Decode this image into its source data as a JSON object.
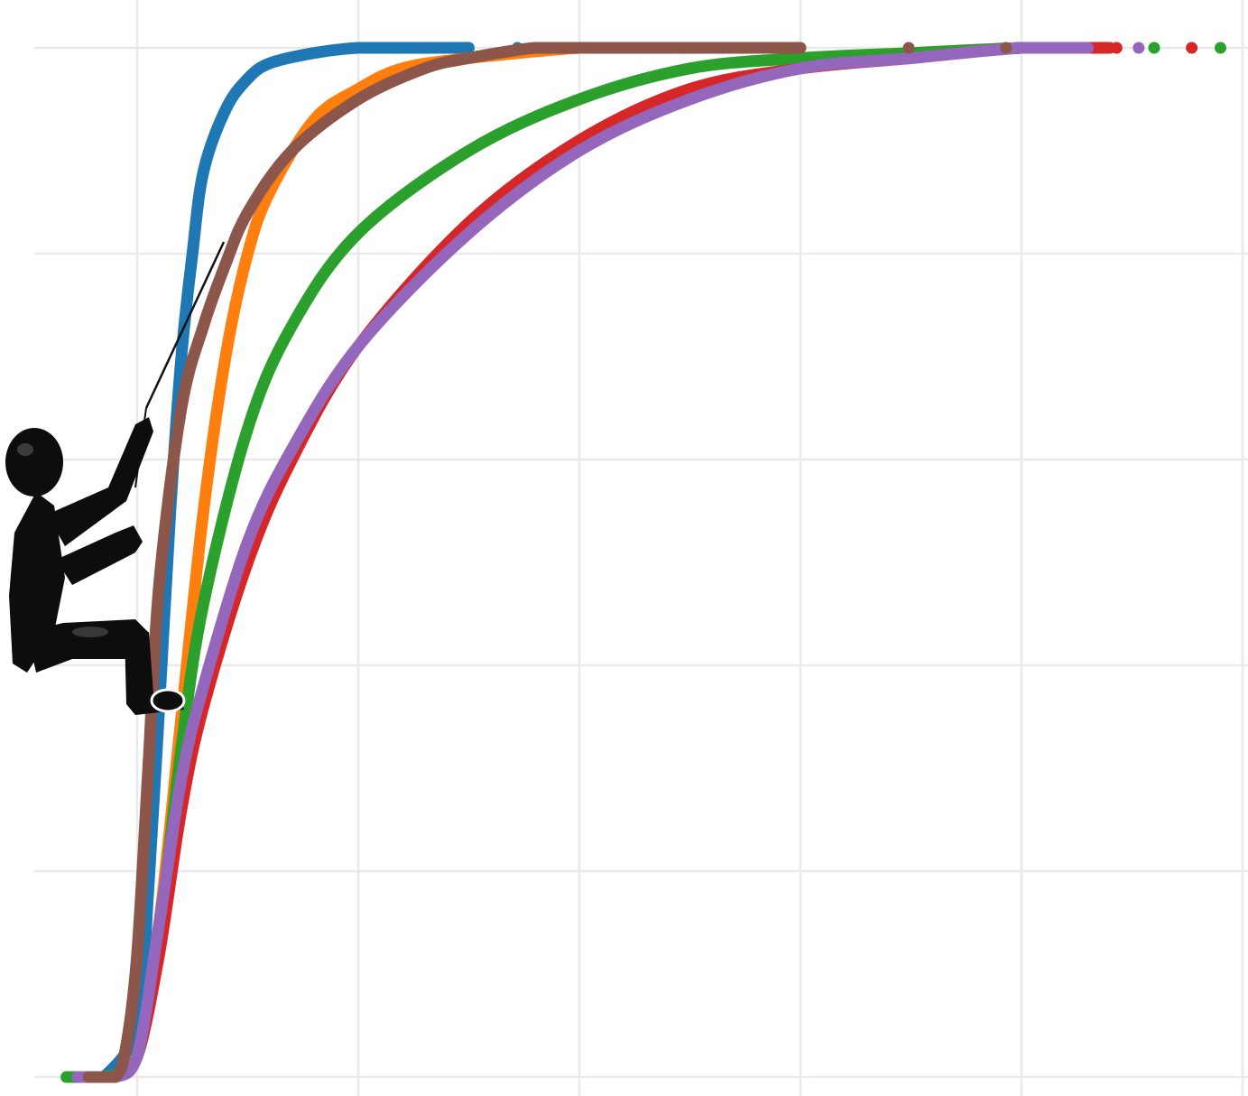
{
  "chart_data": {
    "type": "scatter",
    "title": "",
    "xlabel": "",
    "ylabel": "",
    "xlim": [
      -0.47,
      5.02
    ],
    "ylim": [
      -0.04,
      1.03
    ],
    "x_gridlines": [
      0,
      1,
      2,
      3,
      4,
      5
    ],
    "y_gridlines": [
      0,
      0.2,
      0.4,
      0.6,
      0.8,
      1.0
    ],
    "grid": true,
    "legend": "none",
    "series": [
      {
        "color": "#1f77b4",
        "x": [
          -0.22,
          -0.15,
          0.0,
          0.05,
          0.1,
          0.15,
          0.2,
          0.25,
          0.3,
          0.4,
          0.5,
          0.6,
          0.8,
          1.0,
          1.2,
          1.5
        ],
        "y": [
          0.0,
          0.0,
          0.05,
          0.18,
          0.36,
          0.55,
          0.7,
          0.8,
          0.88,
          0.94,
          0.97,
          0.985,
          0.995,
          1.0,
          1.0,
          1.0
        ],
        "tail_x": [
          1.48,
          1.72,
          2.04,
          2.08
        ],
        "tail_y": [
          1.0,
          1.0,
          1.0,
          1.0
        ]
      },
      {
        "color": "#ff7f0e",
        "x": [
          -0.22,
          -0.1,
          0.0,
          0.1,
          0.2,
          0.3,
          0.4,
          0.5,
          0.6,
          0.8,
          1.0,
          1.2,
          1.5,
          2.0,
          2.2
        ],
        "y": [
          0.0,
          0.0,
          0.02,
          0.15,
          0.35,
          0.55,
          0.7,
          0.8,
          0.86,
          0.93,
          0.96,
          0.98,
          0.99,
          1.0,
          1.0
        ],
        "tail_x": [
          1.93,
          2.27
        ],
        "tail_y": [
          1.0,
          1.0
        ]
      },
      {
        "color": "#2ca02c",
        "x": [
          -0.32,
          -0.15,
          0.0,
          0.1,
          0.2,
          0.3,
          0.5,
          0.7,
          1.0,
          1.5,
          2.0,
          2.5,
          3.0,
          3.5,
          4.0,
          4.3
        ],
        "y": [
          0.0,
          0.0,
          0.02,
          0.14,
          0.32,
          0.46,
          0.63,
          0.73,
          0.82,
          0.9,
          0.95,
          0.98,
          0.99,
          0.995,
          1.0,
          1.0
        ],
        "tail_x": [
          4.6,
          4.9
        ],
        "tail_y": [
          1.0,
          1.0
        ]
      },
      {
        "color": "#d62728",
        "x": [
          -0.22,
          -0.1,
          0.0,
          0.1,
          0.2,
          0.3,
          0.5,
          0.7,
          1.0,
          1.5,
          2.0,
          2.5,
          3.0,
          3.5,
          4.0,
          4.4
        ],
        "y": [
          0.0,
          0.0,
          0.02,
          0.12,
          0.26,
          0.36,
          0.5,
          0.6,
          0.71,
          0.83,
          0.91,
          0.96,
          0.98,
          0.99,
          1.0,
          1.0
        ],
        "tail_x": [
          4.38,
          4.43,
          4.77
        ],
        "tail_y": [
          1.0,
          1.0,
          1.0
        ]
      },
      {
        "color": "#9467bd",
        "x": [
          -0.27,
          -0.1,
          0.0,
          0.1,
          0.2,
          0.3,
          0.5,
          0.7,
          1.0,
          1.5,
          2.0,
          2.5,
          3.0,
          3.5,
          4.0,
          4.3
        ],
        "y": [
          0.0,
          0.0,
          0.02,
          0.15,
          0.29,
          0.38,
          0.52,
          0.61,
          0.71,
          0.82,
          0.9,
          0.95,
          0.98,
          0.99,
          1.0,
          1.0
        ],
        "tail_x": [
          4.53
        ],
        "tail_y": [
          1.0
        ]
      },
      {
        "color": "#8c564b",
        "x": [
          -0.22,
          -0.1,
          -0.05,
          0.0,
          0.05,
          0.1,
          0.2,
          0.3,
          0.4,
          0.5,
          0.7,
          1.0,
          1.3,
          1.5,
          1.8,
          2.0,
          2.4,
          3.0
        ],
        "y": [
          0.0,
          0.0,
          0.03,
          0.12,
          0.3,
          0.48,
          0.65,
          0.73,
          0.79,
          0.84,
          0.9,
          0.95,
          0.98,
          0.99,
          1.0,
          1.0,
          1.0,
          1.0
        ],
        "tail_x": [
          2.47,
          2.94,
          3.49,
          3.93
        ],
        "tail_y": [
          1.0,
          1.0,
          1.0,
          1.0
        ]
      }
    ]
  },
  "illustration": {
    "icon": "climber-icon"
  }
}
